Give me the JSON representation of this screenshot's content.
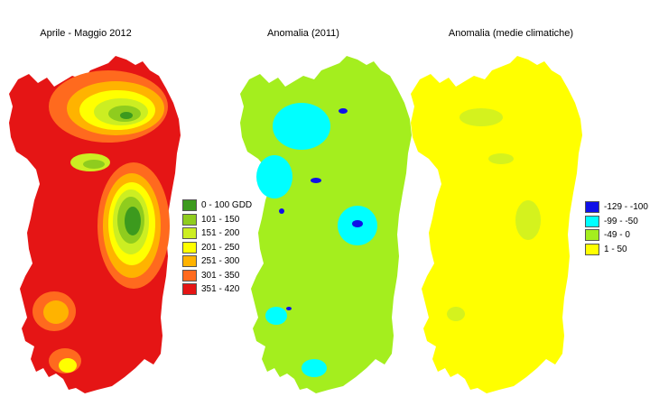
{
  "maps": [
    {
      "title": "Aprile - Maggio 2012"
    },
    {
      "title": "Anomalia (2011)"
    },
    {
      "title": "Anomalia (medie climatiche)"
    }
  ],
  "legend_gdd": [
    {
      "label": "0 - 100 GDD",
      "color": "#3c9a1e"
    },
    {
      "label": "101 - 150",
      "color": "#8fcc1e"
    },
    {
      "label": "151 - 200",
      "color": "#ccee22"
    },
    {
      "label": "201 - 250",
      "color": "#ffff00"
    },
    {
      "label": "251 - 300",
      "color": "#ffb300"
    },
    {
      "label": "301 - 350",
      "color": "#ff6a1e"
    },
    {
      "label": "351 - 420",
      "color": "#e51515"
    }
  ],
  "legend_anomaly": [
    {
      "label": "-129 - -100",
      "color": "#1010e8"
    },
    {
      "label": "-99 - -50",
      "color": "#00ffff"
    },
    {
      "label": "-49 - 0",
      "color": "#a4ee1e"
    },
    {
      "label": "1 - 50",
      "color": "#ffff00"
    }
  ]
}
